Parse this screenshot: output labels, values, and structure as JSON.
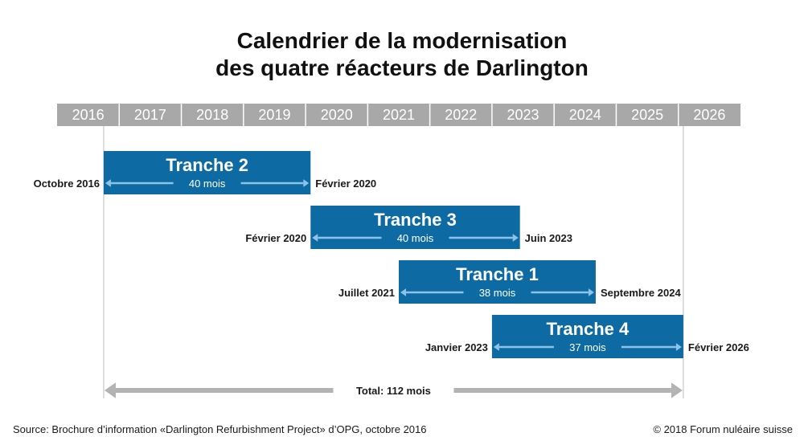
{
  "chart_data": {
    "type": "gantt",
    "title_lines": [
      "Calendrier de la modernisation",
      "des quatre réacteurs de Darlington"
    ],
    "years": [
      "2016",
      "2017",
      "2018",
      "2019",
      "2020",
      "2021",
      "2022",
      "2023",
      "2024",
      "2025",
      "2026"
    ],
    "x_range": [
      2016,
      2027
    ],
    "tasks": [
      {
        "label": "Tranche 2",
        "duration": "40 mois",
        "start_label": "Octobre 2016",
        "end_label": "Février 2020",
        "start": 2016.75,
        "end": 2020.08
      },
      {
        "label": "Tranche 3",
        "duration": "40 mois",
        "start_label": "Février 2020",
        "end_label": "Juin 2023",
        "start": 2020.08,
        "end": 2023.45
      },
      {
        "label": "Tranche 1",
        "duration": "38 mois",
        "start_label": "Juillet 2021",
        "end_label": "Septembre 2024",
        "start": 2021.5,
        "end": 2024.67
      },
      {
        "label": "Tranche 4",
        "duration": "37 mois",
        "start_label": "Janvier 2023",
        "end_label": "Février 2026",
        "start": 2023.0,
        "end": 2026.08
      }
    ],
    "total": {
      "label": "Total: 112 mois",
      "start": 2016.75,
      "end": 2026.08
    }
  },
  "colors": {
    "bar": "#0e6aa3",
    "year_band": "#a8a8a8",
    "arrow_light": "#8cc3e6",
    "total_arrow": "#b3b3b3",
    "guide_line": "#bdbdbd"
  },
  "footer": {
    "source": "Source: Brochure d’information «Darlington Refurbishment Project» d’OPG, octobre 2016",
    "copyright": "© 2018 Forum nuléaire suisse"
  }
}
